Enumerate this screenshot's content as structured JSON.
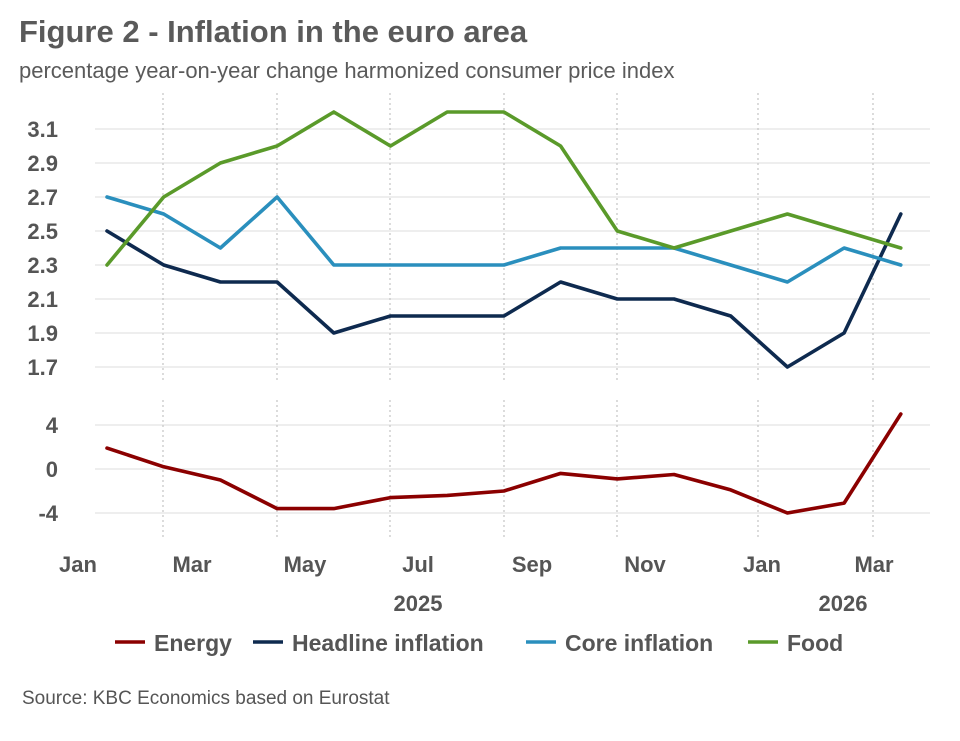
{
  "header": {
    "title": "Figure 2 - Inflation in the euro area",
    "subtitle": "percentage year-on-year change harmonized consumer price index"
  },
  "footer": {
    "source": "Source: KBC Economics based on Eurostat"
  },
  "chart_data": [
    {
      "type": "line",
      "panel": "top",
      "x": [
        "2025-01",
        "2025-02",
        "2025-03",
        "2025-04",
        "2025-05",
        "2025-06",
        "2025-07",
        "2025-08",
        "2025-09",
        "2025-10",
        "2025-11",
        "2025-12",
        "2026-01",
        "2026-02",
        "2026-03"
      ],
      "yticks": [
        1.7,
        1.9,
        2.1,
        2.3,
        2.5,
        2.7,
        2.9,
        3.1
      ],
      "ylim": [
        1.5,
        3.2
      ],
      "grid": true,
      "series": [
        {
          "name": "Headline inflation",
          "color": "#0e2a4f",
          "values": [
            2.5,
            2.3,
            2.2,
            2.2,
            1.9,
            2.0,
            2.0,
            2.0,
            2.2,
            2.1,
            2.1,
            2.0,
            1.7,
            1.9,
            2.6
          ]
        },
        {
          "name": "Core inflation",
          "color": "#2a8fbd",
          "values": [
            2.7,
            2.6,
            2.4,
            2.7,
            2.3,
            2.3,
            2.3,
            2.3,
            2.4,
            2.4,
            2.4,
            2.3,
            2.2,
            2.4,
            2.3
          ]
        },
        {
          "name": "Food",
          "color": "#5a9a2a",
          "values": [
            2.3,
            2.7,
            2.9,
            3.0,
            3.2,
            3.0,
            3.2,
            3.2,
            3.0,
            2.5,
            2.4,
            2.5,
            2.6,
            2.5,
            2.4
          ]
        }
      ]
    },
    {
      "type": "line",
      "panel": "bottom",
      "x": [
        "2025-01",
        "2025-02",
        "2025-03",
        "2025-04",
        "2025-05",
        "2025-06",
        "2025-07",
        "2025-08",
        "2025-09",
        "2025-10",
        "2025-11",
        "2025-12",
        "2026-01",
        "2026-02",
        "2026-03"
      ],
      "yticks": [
        -4,
        0,
        4
      ],
      "ylim": [
        -6,
        5.5
      ],
      "grid": true,
      "series": [
        {
          "name": "Energy",
          "color": "#8b0000",
          "values": [
            1.9,
            0.2,
            -1.0,
            -3.6,
            -3.6,
            -2.6,
            -2.4,
            -2.0,
            -0.4,
            -0.9,
            -0.5,
            -1.9,
            -4.0,
            -3.1,
            5.0
          ]
        }
      ]
    }
  ],
  "x_axis": {
    "tick_labels": [
      "Jan",
      "Mar",
      "May",
      "Jul",
      "Sep",
      "Nov",
      "Jan",
      "Mar"
    ],
    "year_labels": [
      "2025",
      "2026"
    ]
  },
  "legend": {
    "position": "bottom",
    "items": [
      {
        "label": "Energy",
        "color": "#8b0000"
      },
      {
        "label": "Headline inflation",
        "color": "#0e2a4f"
      },
      {
        "label": "Core inflation",
        "color": "#2a8fbd"
      },
      {
        "label": "Food",
        "color": "#5a9a2a"
      }
    ]
  }
}
